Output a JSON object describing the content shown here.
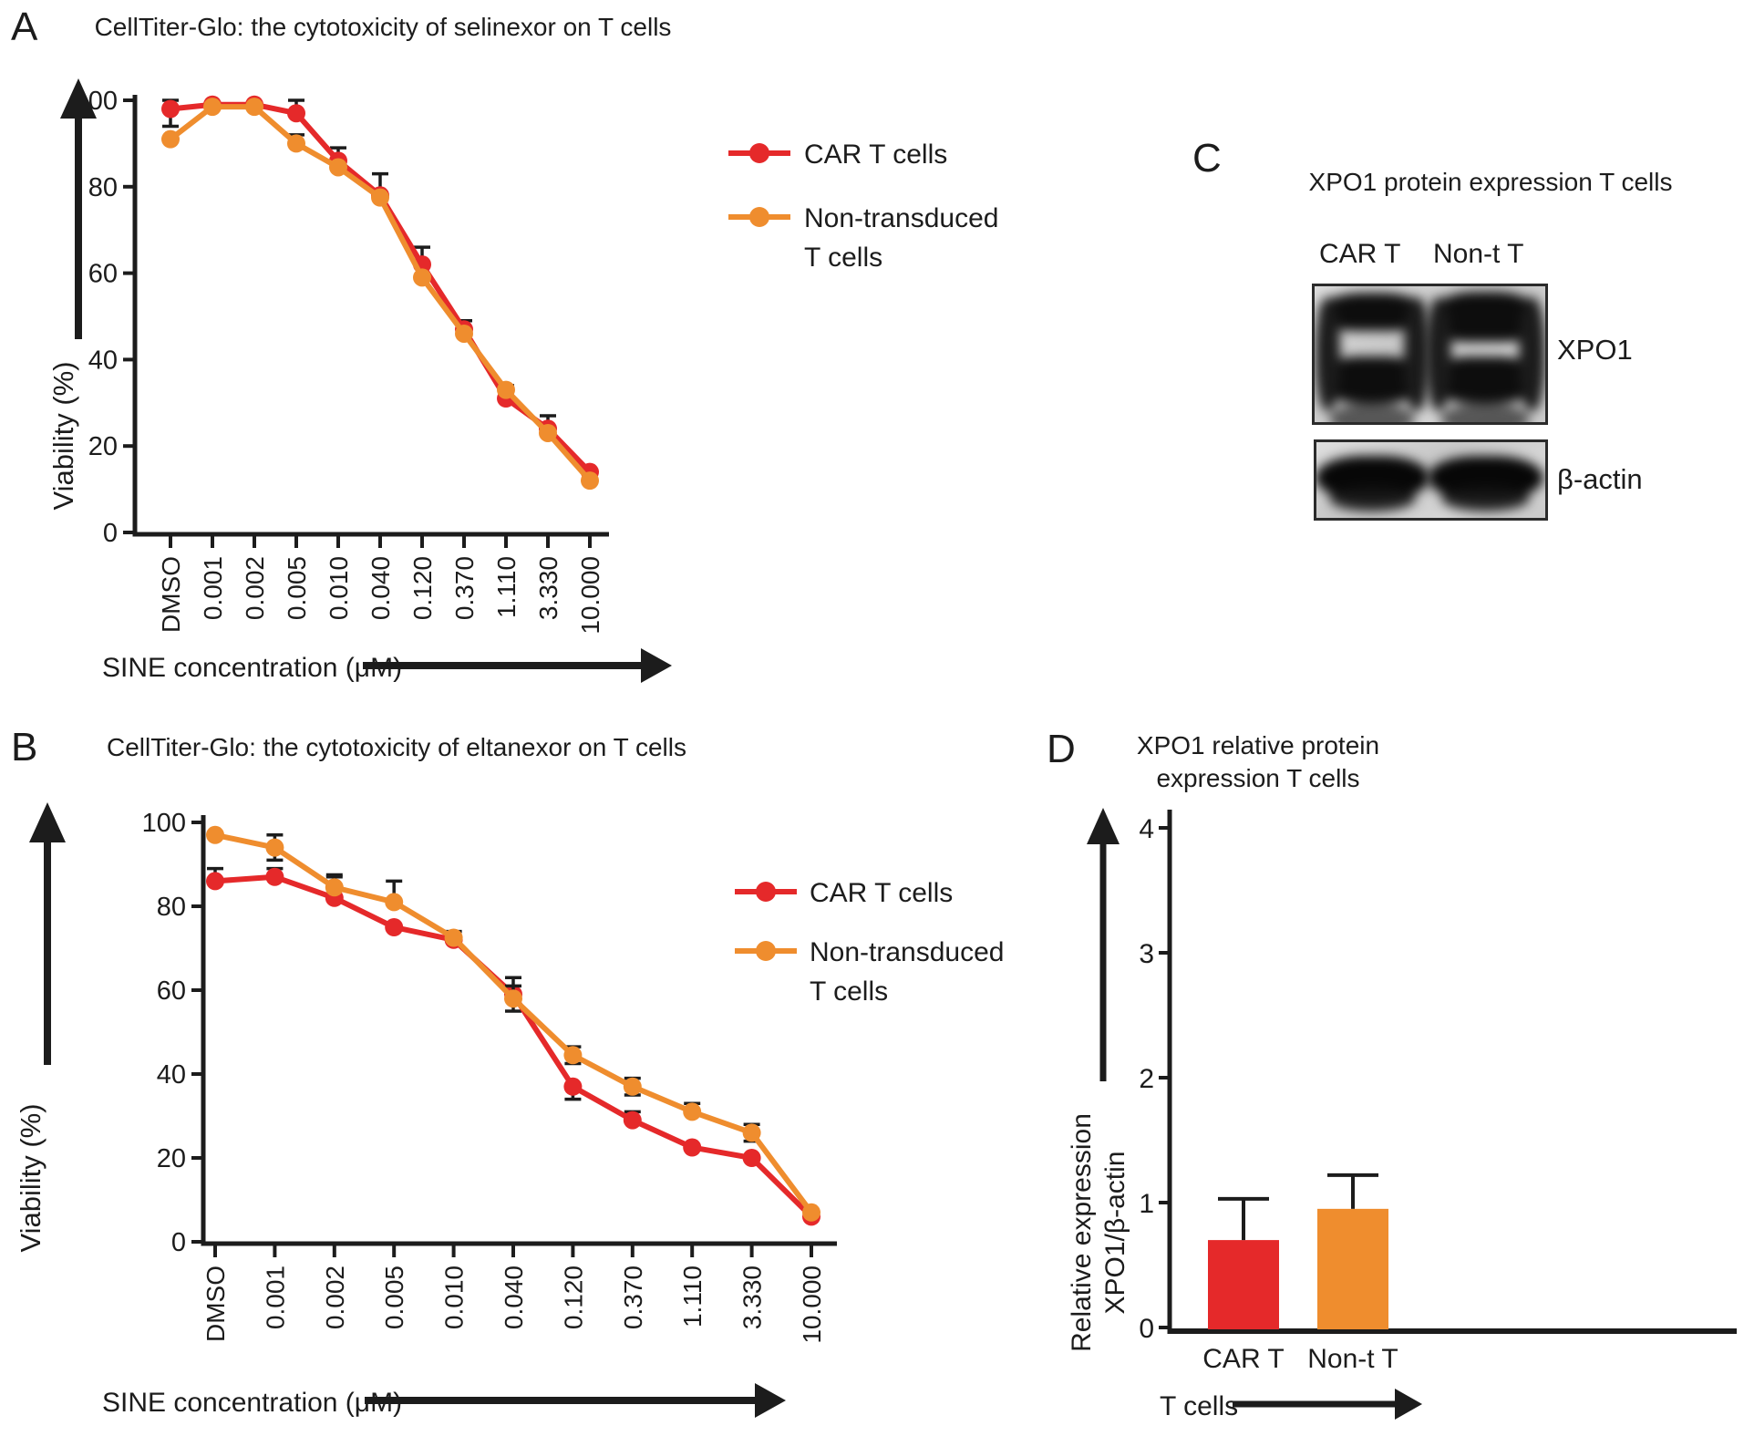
{
  "figure": {
    "background": "#ffffff",
    "ink": "#1c1c1c"
  },
  "panels": {
    "A": {
      "label": "A"
    },
    "B": {
      "label": "B"
    },
    "C": {
      "label": "C",
      "title": "XPO1 protein expression T cells",
      "lanes": [
        "CAR T",
        "Non-t T"
      ],
      "bands": [
        "XPO1",
        "β-actin"
      ]
    },
    "D": {
      "label": "D"
    }
  },
  "chart_data": [
    {
      "id": "A",
      "type": "line",
      "title": "CellTiter-Glo: the cytotoxicity of selinexor on T cells",
      "xlabel": "SINE concentration (μM)",
      "ylabel": "Viability (%)",
      "ylim": [
        0,
        100
      ],
      "yticks": [
        0,
        20,
        40,
        60,
        80,
        100
      ],
      "grid": false,
      "legend_position": "right",
      "categories": [
        "DMSO",
        "0.001",
        "0.002",
        "0.005",
        "0.010",
        "0.040",
        "0.120",
        "0.370",
        "1.110",
        "3.330",
        "10.000"
      ],
      "series": [
        {
          "name": "CAR T cells",
          "legend_lines": [
            "CAR T cells"
          ],
          "color": "#e5292a",
          "values": [
            98,
            99,
            99,
            97,
            86,
            78,
            62,
            47,
            31,
            24,
            14
          ],
          "err_up": [
            2,
            0,
            0,
            3,
            3,
            5,
            4,
            2,
            3,
            3,
            0
          ],
          "err_down": [
            4,
            0,
            0,
            0,
            0,
            0,
            0,
            0,
            0,
            0,
            0
          ]
        },
        {
          "name": "Non-transduced T cells",
          "legend_lines": [
            "Non-transduced",
            "T cells"
          ],
          "color": "#ef8d2e",
          "values": [
            91,
            98.5,
            98.5,
            90,
            84.5,
            77.5,
            59,
            46,
            33,
            23,
            12
          ],
          "err_up": [
            0,
            0,
            0,
            2,
            0,
            0,
            0,
            0,
            0,
            0,
            0
          ],
          "err_down": [
            0,
            0,
            0,
            0,
            0,
            0,
            0,
            0,
            0,
            0,
            0
          ]
        }
      ]
    },
    {
      "id": "B",
      "type": "line",
      "title": "CellTiter-Glo: the cytotoxicity of eltanexor on T cells",
      "xlabel": "SINE concentration (μM)",
      "ylabel": "Viability (%)",
      "ylim": [
        0,
        100
      ],
      "yticks": [
        0,
        20,
        40,
        60,
        80,
        100
      ],
      "grid": false,
      "legend_position": "right",
      "categories": [
        "DMSO",
        "0.001",
        "0.002",
        "0.005",
        "0.010",
        "0.040",
        "0.120",
        "0.370",
        "1.110",
        "3.330",
        "10.000"
      ],
      "series": [
        {
          "name": "CAR T cells",
          "legend_lines": [
            "CAR T cells"
          ],
          "color": "#e5292a",
          "values": [
            86,
            87,
            82,
            75,
            72,
            59,
            37,
            29,
            22.5,
            20,
            6
          ],
          "err_up": [
            3,
            2,
            5,
            0,
            2,
            4,
            0,
            2,
            0,
            0,
            0
          ],
          "err_down": [
            0,
            0,
            0,
            0,
            0,
            4,
            3,
            0,
            0,
            0,
            0
          ]
        },
        {
          "name": "Non-transduced T cells",
          "legend_lines": [
            "Non-transduced",
            "T cells"
          ],
          "color": "#ef8d2e",
          "values": [
            97,
            94,
            84.5,
            81,
            72.5,
            58,
            44.5,
            37,
            31,
            26,
            7
          ],
          "err_up": [
            0,
            3,
            3,
            5,
            0,
            3,
            2,
            2,
            2,
            2,
            0
          ],
          "err_down": [
            0,
            3,
            0,
            0,
            0,
            0,
            2,
            2,
            0,
            2,
            0
          ]
        }
      ]
    },
    {
      "id": "D",
      "type": "bar",
      "title": "XPO1 relative protein expression T cells",
      "title_lines": [
        "XPO1 relative protein",
        "expression T cells"
      ],
      "xlabel": "T cells",
      "ylabel_lines": [
        "Relative expression",
        "XPO1/β-actin"
      ],
      "ylim": [
        0,
        4
      ],
      "yticks": [
        0,
        1,
        2,
        3,
        4
      ],
      "grid": false,
      "categories": [
        "CAR T",
        "Non-t T"
      ],
      "values": [
        0.7,
        0.95
      ],
      "err_up": [
        0.33,
        0.27
      ],
      "colors": [
        "#e5292a",
        "#ef8d2e"
      ]
    }
  ]
}
